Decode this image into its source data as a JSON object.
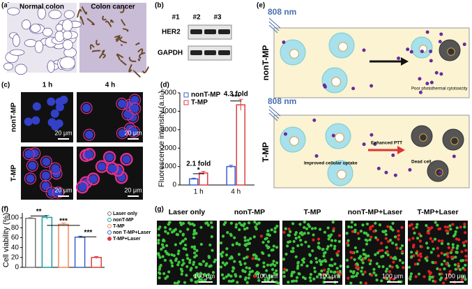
{
  "panel_labels": [
    "(a)",
    "(b)",
    "(c)",
    "(d)",
    "(e)",
    "(f)",
    "(g)"
  ],
  "a": {
    "labels": [
      "Normal colon",
      "Colon cancer"
    ]
  },
  "b": {
    "lanes": [
      "#1",
      "#2",
      "#3"
    ],
    "rows": [
      "HER2",
      "GAPDH"
    ]
  },
  "c": {
    "times": [
      "1 h",
      "4 h"
    ],
    "groups": [
      "nonT-MP",
      "T-MP"
    ],
    "scale_bar": "20 μm"
  },
  "e": {
    "wavelength": "808 nm",
    "groups": [
      "nonT-MP",
      "T-MP"
    ],
    "notes": [
      "Poor photothermal cytotoxicity",
      "Improved cellular uptake",
      "Enhanced PTT",
      "Dead cell"
    ]
  },
  "g": {
    "labels": [
      "Laser only",
      "nonT-MP",
      "T-MP",
      "nonT-MP+Laser",
      "T-MP+Laser"
    ],
    "scale_bar": "100 μm"
  },
  "chart_data": [
    {
      "type": "bar",
      "ylabel": "Fluorescence intensity (a.u.)",
      "categories": [
        "1 h",
        "4 h"
      ],
      "series": [
        {
          "name": "nonT-MP",
          "color": "#3a5fcd",
          "values": [
            330,
            1000
          ],
          "errors": [
            40,
            70
          ]
        },
        {
          "name": "T-MP",
          "color": "#e03c3c",
          "values": [
            650,
            4350
          ],
          "errors": [
            90,
            300
          ]
        }
      ],
      "ylim": [
        0,
        5000
      ],
      "yticks": [
        0,
        1000,
        2000,
        3000,
        4000,
        5000
      ],
      "legend": "upper left",
      "annotations": [
        "2.1 fold",
        "*",
        "4.3 fold",
        "***"
      ]
    },
    {
      "type": "bar",
      "ylabel": "Cell viability (%)",
      "values": [
        99,
        101,
        87,
        61,
        20
      ],
      "errors": [
        1.5,
        4,
        3,
        2,
        2
      ],
      "legend": [
        "Laser only",
        "nonT-MP",
        "T-MP",
        "non T-MP+Laser",
        "T-MP+Laser"
      ],
      "colors": [
        "#777777",
        "#1a9c9c",
        "#f08a5d",
        "#3a5fcd",
        "#e03c3c"
      ],
      "ylim": [
        0,
        110
      ],
      "yticks": [
        0,
        20,
        40,
        60,
        80,
        100
      ],
      "legend_position": "right",
      "annotations": [
        "**",
        "***",
        "***"
      ]
    }
  ]
}
